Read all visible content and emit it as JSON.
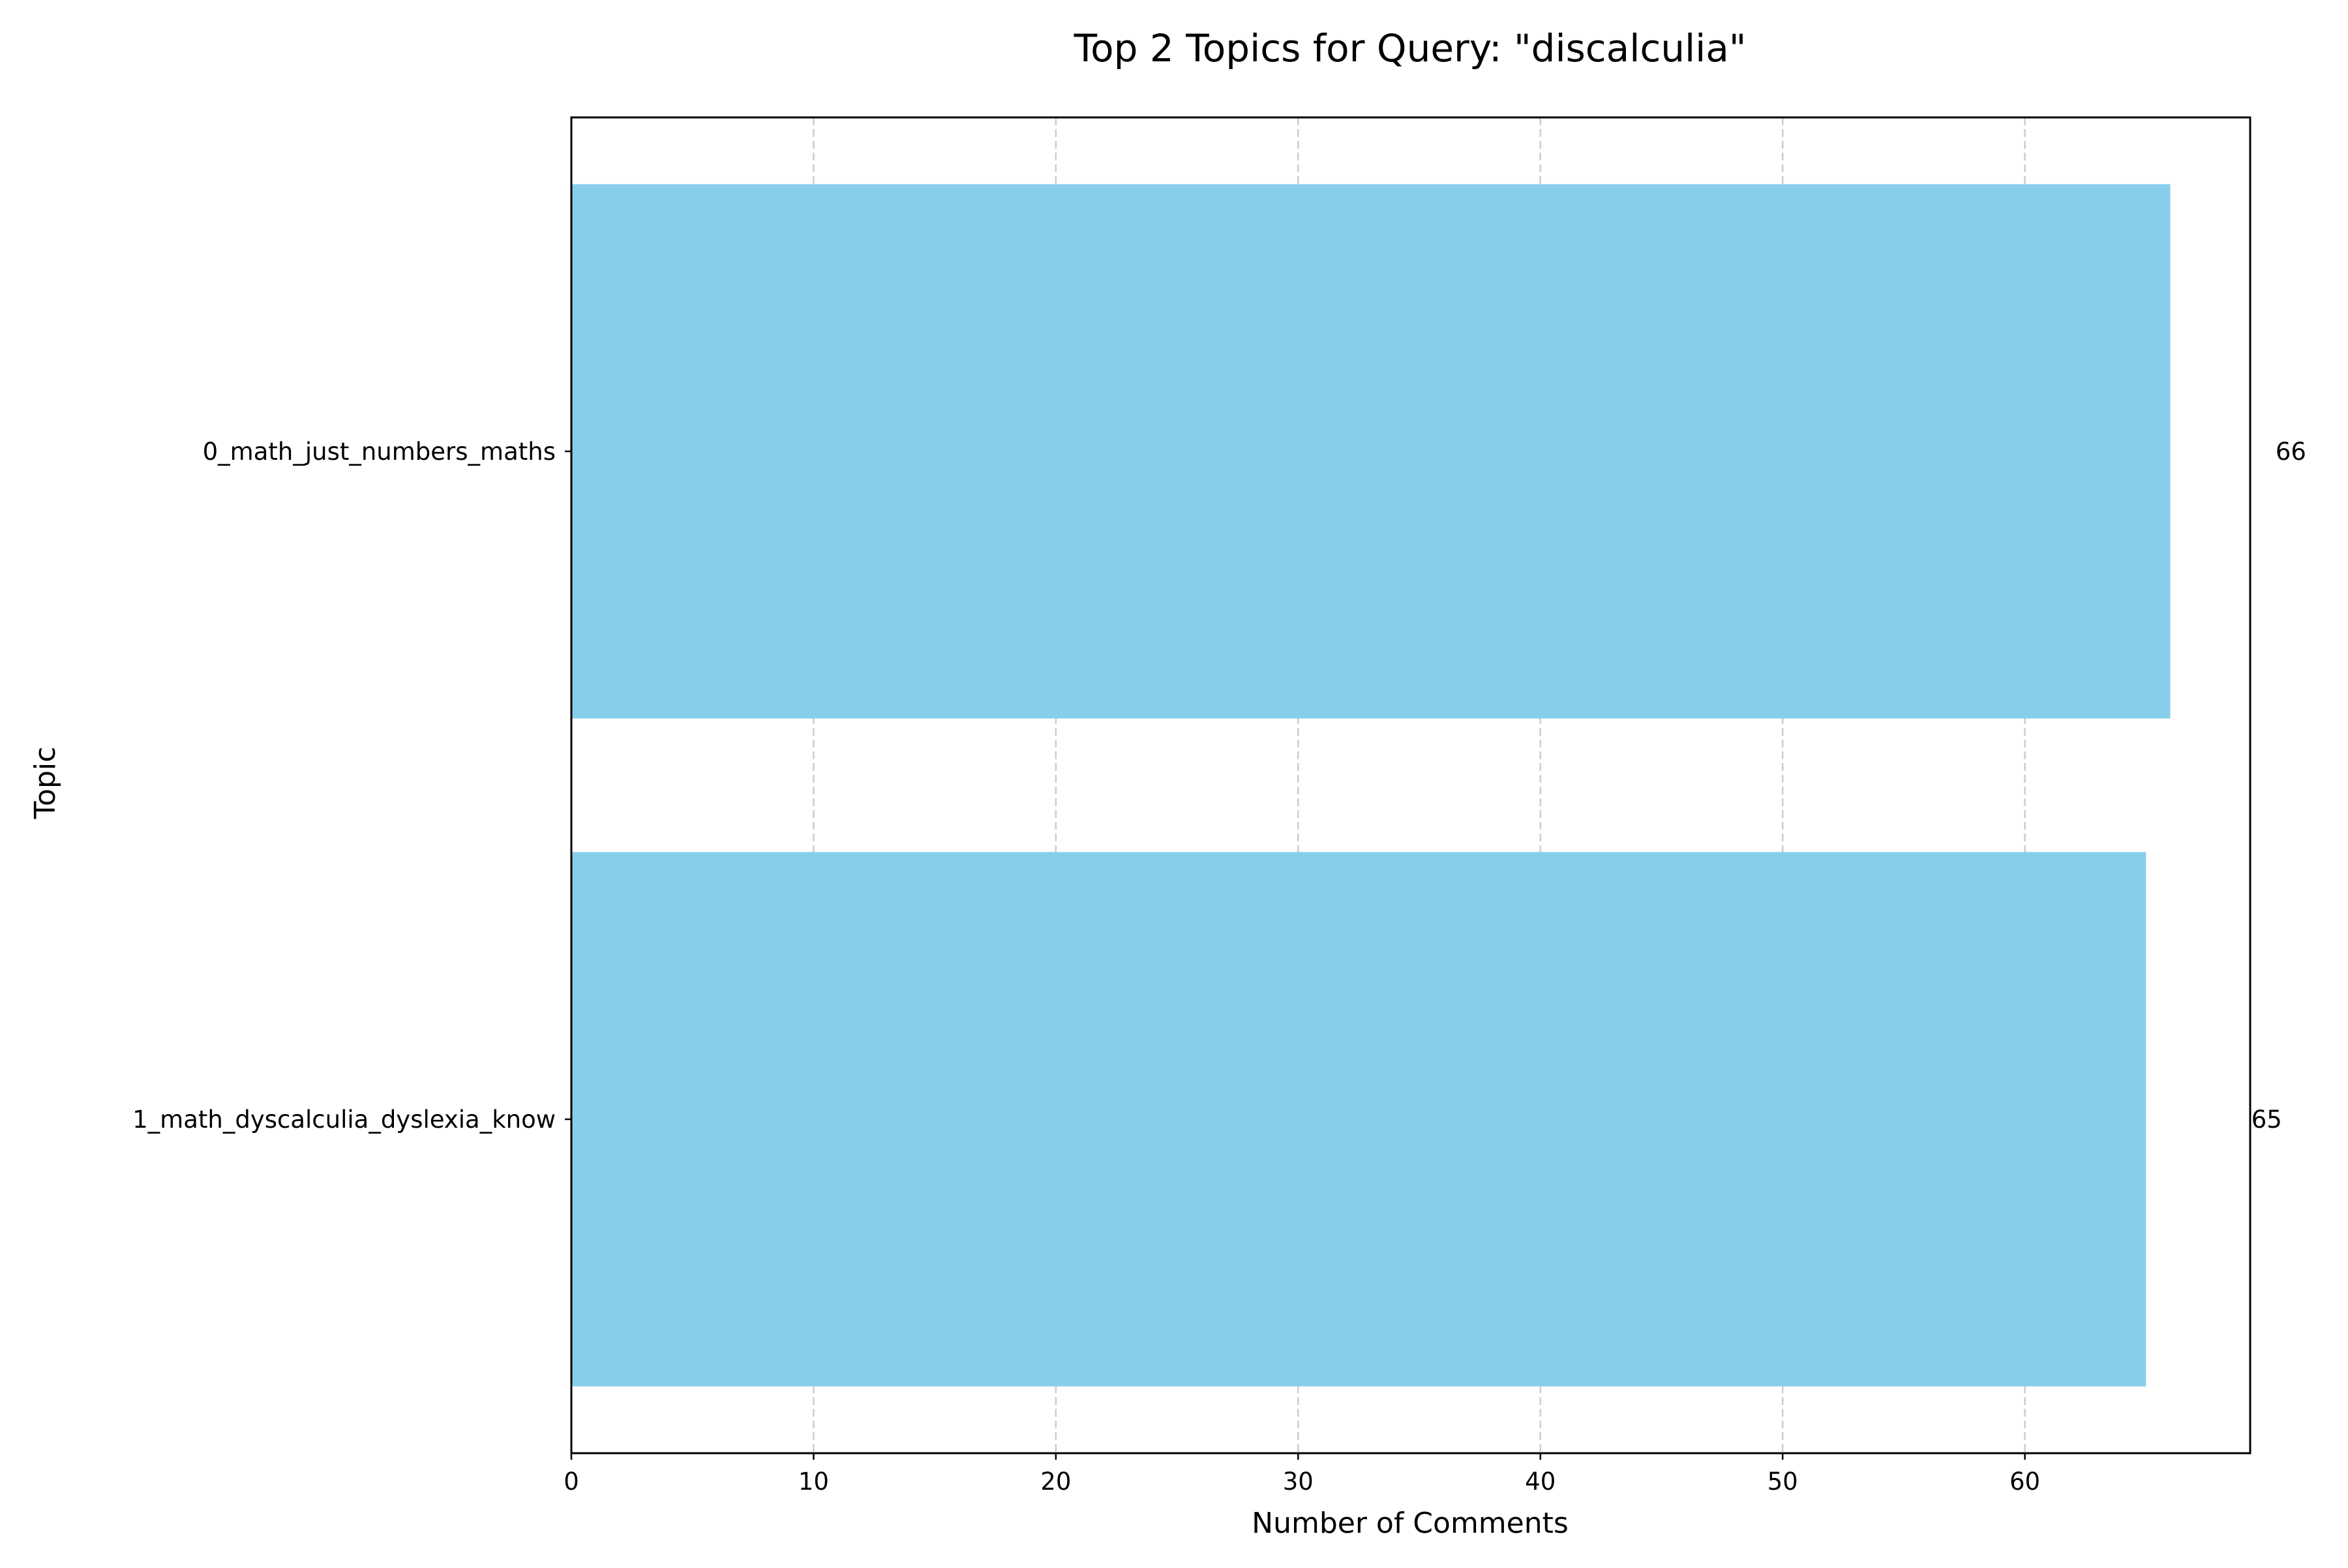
{
  "chart_data": {
    "type": "bar",
    "orientation": "horizontal",
    "title": "Top 2 Topics for Query: \"discalculia\"",
    "xlabel": "Number of Comments",
    "ylabel": "Topic",
    "categories": [
      "0_math_just_numbers_maths",
      "1_math_dyscalculia_dyslexia_know"
    ],
    "values": [
      66,
      65
    ],
    "data_labels": [
      "66",
      "65"
    ],
    "xlim": [
      0,
      69.3
    ],
    "xticks": [
      0,
      10,
      20,
      30,
      40,
      50,
      60
    ],
    "xtick_labels": [
      "0",
      "10",
      "20",
      "30",
      "40",
      "50",
      "60"
    ],
    "grid": {
      "x": true,
      "y": false,
      "style": "dashed"
    },
    "bar_color": "#87CEEB",
    "grid_color": "#cccccc",
    "legend": "none"
  }
}
